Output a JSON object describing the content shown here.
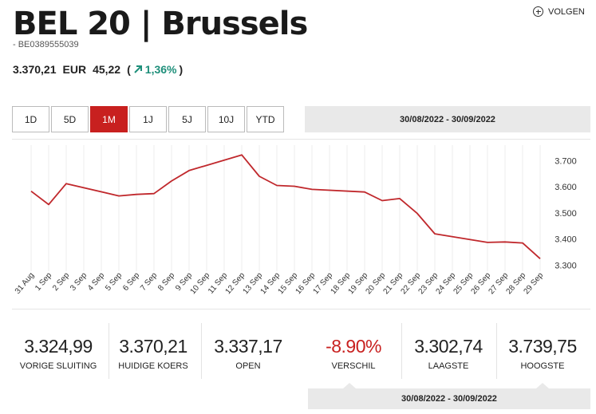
{
  "header": {
    "title": "BEL 20 | Brussels",
    "isin": "- BE0389555039",
    "follow_label": "VOLGEN"
  },
  "quote": {
    "price": "3.370,21",
    "currency": "EUR",
    "change": "45,22",
    "open_paren": "(",
    "change_pct": "1,36%",
    "close_paren": ")",
    "color_up": "#1e8f7a"
  },
  "tabs": [
    {
      "label": "1D",
      "active": false
    },
    {
      "label": "5D",
      "active": false
    },
    {
      "label": "1M",
      "active": true
    },
    {
      "label": "1J",
      "active": false
    },
    {
      "label": "5J",
      "active": false
    },
    {
      "label": "10J",
      "active": false
    },
    {
      "label": "YTD",
      "active": false
    }
  ],
  "range_label": "30/08/2022 - 30/09/2022",
  "chart_data": {
    "type": "line",
    "line_color": "#c0282c",
    "ylim": [
      3280,
      3750
    ],
    "yticks": [
      3300,
      3400,
      3500,
      3600,
      3700
    ],
    "ytick_labels": [
      "3.300",
      "3.400",
      "3.500",
      "3.600",
      "3.700"
    ],
    "x": [
      "31 Aug",
      "1 Sep",
      "2 Sep",
      "3 Sep",
      "4 Sep",
      "5 Sep",
      "6 Sep",
      "7 Sep",
      "8 Sep",
      "9 Sep",
      "10 Sep",
      "11 Sep",
      "12 Sep",
      "13 Sep",
      "14 Sep",
      "15 Sep",
      "16 Sep",
      "17 Sep",
      "18 Sep",
      "19 Sep",
      "20 Sep",
      "21 Sep",
      "22 Sep",
      "23 Sep",
      "24 Sep",
      "25 Sep",
      "26 Sep",
      "27 Sep",
      "28 Sep",
      "29 Sep"
    ],
    "series": [
      {
        "values": [
          3583,
          3532,
          3612,
          null,
          null,
          3565,
          3571,
          3574,
          3622,
          3662,
          null,
          null,
          3722,
          3640,
          3605,
          3602,
          3590,
          null,
          null,
          3580,
          3547,
          3555,
          3498,
          3420,
          null,
          null,
          3387,
          3389,
          3385,
          3325
        ]
      }
    ],
    "grid": "vertical"
  },
  "stats": [
    {
      "value": "3.324,99",
      "label": "VORIGE SLUITING",
      "negative": false
    },
    {
      "value": "3.370,21",
      "label": "HUIDIGE KOERS",
      "negative": false
    },
    {
      "value": "3.337,17",
      "label": "OPEN",
      "negative": false
    },
    {
      "value": "-8.90%",
      "label": "VERSCHIL",
      "negative": true
    },
    {
      "value": "3.302,74",
      "label": "LAAGSTE",
      "negative": false
    },
    {
      "value": "3.739,75",
      "label": "HOOGSTE",
      "negative": false
    }
  ],
  "footer_range_label": "30/08/2022 - 30/09/2022"
}
